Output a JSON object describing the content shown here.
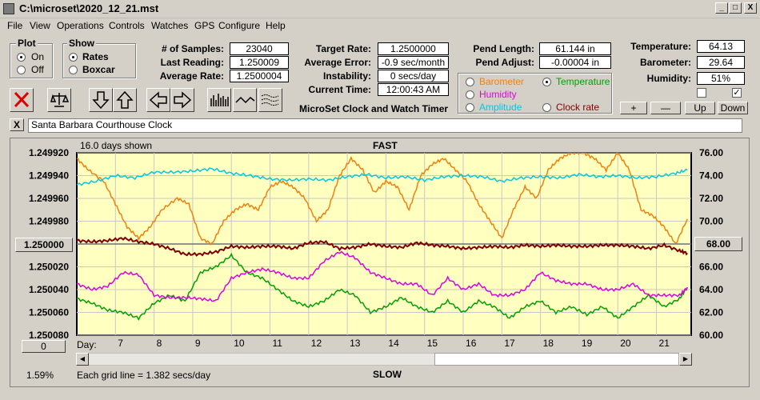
{
  "window": {
    "title": "C:\\microset\\2020_12_21.mst",
    "minimize": "_",
    "maximize": "□",
    "close": "X"
  },
  "menu": [
    "File",
    "View",
    "Operations",
    "Controls",
    "Watches",
    "GPS",
    "Configure",
    "Help"
  ],
  "plot_group": {
    "title": "Plot",
    "on": "On",
    "off": "Off",
    "selected": "On"
  },
  "show_group": {
    "title": "Show",
    "rates": "Rates",
    "boxcar": "Boxcar",
    "selected": "Rates"
  },
  "stats": {
    "samples_label": "# of Samples:",
    "samples": "23040",
    "last_label": "Last Reading:",
    "last": "1.250009",
    "avg_rate_label": "Average Rate:",
    "avg_rate": "1.2500004",
    "target_label": "Target Rate:",
    "target": "1.2500000",
    "avg_err_label": "Average Error:",
    "avg_err": "-0.9 sec/month",
    "instab_label": "Instability:",
    "instab": "0 secs/day",
    "time_label": "Current Time:",
    "time": "12:00:43 AM",
    "app_name": "MicroSet Clock and Watch Timer",
    "pend_len_label": "Pend Length:",
    "pend_len": "61.144 in",
    "pend_adj_label": "Pend Adjust:",
    "pend_adj": "-0.00004 in",
    "temp_label": "Temperature:",
    "temp": "64.13",
    "baro_label": "Barometer:",
    "baro": "29.64",
    "hum_label": "Humidity:",
    "hum": "51%"
  },
  "selector": {
    "barometer": "Barometer",
    "temperature": "Temperature",
    "humidity": "Humidity",
    "amplitude": "Amplitude",
    "clock_rate": "Clock rate",
    "selected": "Temperature",
    "colors": {
      "barometer": "#f08010",
      "temperature": "#00a000",
      "humidity": "#e000e0",
      "amplitude": "#00c8e0",
      "clock_rate": "#800000"
    }
  },
  "scale_buttons": {
    "plus": "+",
    "minus": "—",
    "up": "Up",
    "down": "Down"
  },
  "watch_name": "Santa Barbara Courthouse Clock",
  "watch_clear": "X",
  "toolbar_icons": [
    "delete-icon",
    "balance-icon",
    "arrow-down-icon",
    "arrow-up-icon",
    "arrow-left-icon",
    "arrow-right-icon",
    "bar-graph-icon",
    "wave-icon",
    "dashed-wave-icon"
  ],
  "graph": {
    "days_shown": "16.0 days shown",
    "fast": "FAST",
    "slow": "SLOW",
    "day_label": "Day:",
    "grid_note": "Each grid line = 1.382 secs/day",
    "percent": "1.59%",
    "left_center_btn": "1.250000",
    "right_center_btn": "68.00",
    "left_bottom_btn": "0"
  },
  "chart_data": {
    "type": "line",
    "x_ticks": [
      "7",
      "8",
      "9",
      "10",
      "11",
      "12",
      "13",
      "14",
      "15",
      "16",
      "17",
      "18",
      "19",
      "20",
      "21"
    ],
    "y_left_ticks": [
      "1.249920",
      "1.249940",
      "1.249960",
      "1.249980",
      "1.250000",
      "1.250020",
      "1.250040",
      "1.250060",
      "1.250080"
    ],
    "y_right_ticks": [
      "76.00",
      "74.00",
      "72.00",
      "70.00",
      "68.00",
      "66.00",
      "64.00",
      "62.00",
      "60.00"
    ],
    "xlim": [
      6,
      21.9
    ],
    "y_right_lim": [
      60,
      76
    ],
    "series": [
      {
        "name": "Barometer",
        "color": "#f08010",
        "x": [
          6.0,
          6.3,
          6.7,
          7.0,
          7.3,
          7.6,
          7.9,
          8.2,
          8.6,
          8.9,
          9.2,
          9.5,
          9.8,
          10.1,
          10.4,
          10.7,
          11.0,
          11.3,
          11.6,
          11.9,
          12.2,
          12.5,
          12.8,
          13.1,
          13.4,
          13.7,
          14.0,
          14.3,
          14.6,
          14.9,
          15.2,
          15.5,
          15.8,
          16.1,
          16.4,
          16.7,
          17.0,
          17.3,
          17.6,
          17.9,
          18.2,
          18.5,
          18.8,
          19.1,
          19.4,
          19.7,
          20.0,
          20.3,
          20.6,
          20.9,
          21.2,
          21.5,
          21.8
        ],
        "y": [
          75.5,
          74.5,
          73.5,
          71.5,
          69.5,
          68.5,
          69.5,
          71,
          72,
          71.5,
          68.5,
          68,
          70,
          71,
          71.5,
          71,
          73,
          73.5,
          73,
          72,
          70,
          71,
          74,
          75.5,
          74.5,
          72.5,
          73.5,
          73,
          71,
          74,
          75,
          75.5,
          74.5,
          73.5,
          71.5,
          70,
          68.5,
          71,
          73,
          72,
          74.5,
          75.5,
          76,
          76,
          75.5,
          74.5,
          76,
          74.5,
          71,
          70.5,
          69.5,
          68,
          70.2
        ]
      },
      {
        "name": "Temperature",
        "color": "#00a000",
        "x": [
          6.0,
          6.4,
          6.8,
          7.2,
          7.6,
          8.0,
          8.4,
          8.8,
          9.2,
          9.6,
          10.0,
          10.4,
          10.8,
          11.2,
          11.6,
          12.0,
          12.4,
          12.8,
          13.2,
          13.6,
          14.0,
          14.4,
          14.8,
          15.2,
          15.6,
          16.0,
          16.4,
          16.8,
          17.2,
          17.6,
          18.0,
          18.4,
          18.8,
          19.2,
          19.6,
          20.0,
          20.4,
          20.8,
          21.2,
          21.6,
          21.8
        ],
        "y": [
          63.2,
          62.8,
          62.2,
          62,
          61.5,
          62.8,
          63.5,
          63,
          65.5,
          66,
          67,
          65.5,
          65,
          64,
          63,
          62.5,
          63,
          64,
          63.5,
          62,
          62.5,
          63.3,
          62.5,
          62,
          63,
          62,
          63,
          62.5,
          61.5,
          62.5,
          63,
          62,
          62.5,
          61.8,
          62.5,
          61.5,
          62.5,
          63.5,
          62.5,
          63.2,
          64.2
        ]
      },
      {
        "name": "Humidity",
        "color": "#e000e0",
        "x": [
          6.0,
          6.4,
          6.8,
          7.2,
          7.6,
          8.0,
          8.4,
          8.8,
          9.2,
          9.6,
          10.0,
          10.4,
          10.8,
          11.2,
          11.6,
          12.0,
          12.4,
          12.8,
          13.2,
          13.6,
          14.0,
          14.4,
          14.8,
          15.2,
          15.6,
          16.0,
          16.4,
          16.8,
          17.2,
          17.6,
          18.0,
          18.4,
          18.8,
          19.2,
          19.6,
          20.0,
          20.4,
          20.8,
          21.2,
          21.6,
          21.8
        ],
        "y": [
          64.5,
          64,
          64.3,
          65.5,
          65.3,
          63.5,
          63.3,
          63.3,
          63.2,
          63,
          65,
          65.5,
          65.8,
          65.5,
          65,
          65,
          66.5,
          67.3,
          66.8,
          65.5,
          65,
          64.5,
          64.5,
          63.5,
          65,
          64,
          64.5,
          63.5,
          63.5,
          64,
          65.5,
          64.8,
          64.5,
          64.5,
          64,
          64,
          64.5,
          63.5,
          63.5,
          63.5,
          64.2
        ]
      },
      {
        "name": "Amplitude",
        "color": "#00c8e0",
        "x": [
          6.0,
          6.5,
          7.0,
          7.5,
          8.0,
          8.5,
          9.0,
          9.5,
          10.0,
          10.5,
          11.0,
          11.5,
          12.0,
          12.5,
          13.0,
          13.5,
          14.0,
          14.5,
          15.0,
          15.5,
          16.0,
          16.5,
          17.0,
          17.5,
          18.0,
          18.5,
          19.0,
          19.5,
          20.0,
          20.5,
          21.0,
          21.5,
          21.8
        ],
        "y": [
          73.2,
          73.5,
          74,
          73.8,
          74.3,
          74.3,
          74.4,
          74.6,
          74.2,
          74,
          73.7,
          73.6,
          73.7,
          73.6,
          73.9,
          74.1,
          73.8,
          73.9,
          73.6,
          73.9,
          74.0,
          73.9,
          73.5,
          73.8,
          73.9,
          73.8,
          74.1,
          73.9,
          74.0,
          73.8,
          73.9,
          74.2,
          74.5
        ]
      },
      {
        "name": "Clock rate",
        "color": "#800000",
        "x": [
          6.0,
          6.4,
          6.8,
          7.2,
          7.6,
          8.0,
          8.4,
          8.8,
          9.2,
          9.6,
          10.0,
          10.4,
          10.8,
          11.2,
          11.6,
          12.0,
          12.4,
          12.8,
          13.2,
          13.6,
          14.0,
          14.4,
          14.8,
          15.2,
          15.6,
          16.0,
          16.4,
          16.8,
          17.2,
          17.6,
          18.0,
          18.4,
          18.8,
          19.2,
          19.6,
          20.0,
          20.4,
          20.8,
          21.2,
          21.6,
          21.8
        ],
        "y": [
          68.3,
          68.2,
          68.3,
          68.5,
          68.2,
          68,
          67.6,
          67.1,
          67.1,
          67.3,
          67.8,
          67.7,
          67.8,
          67.8,
          67.6,
          68.1,
          68.2,
          67.6,
          67.7,
          68,
          67.8,
          67.7,
          68.1,
          67.9,
          67.8,
          67.6,
          67.7,
          67.8,
          67.7,
          67.9,
          67.8,
          67.9,
          67.8,
          67.8,
          67.9,
          67.9,
          67.8,
          67.6,
          67.9,
          67.4,
          67.2
        ]
      }
    ]
  }
}
